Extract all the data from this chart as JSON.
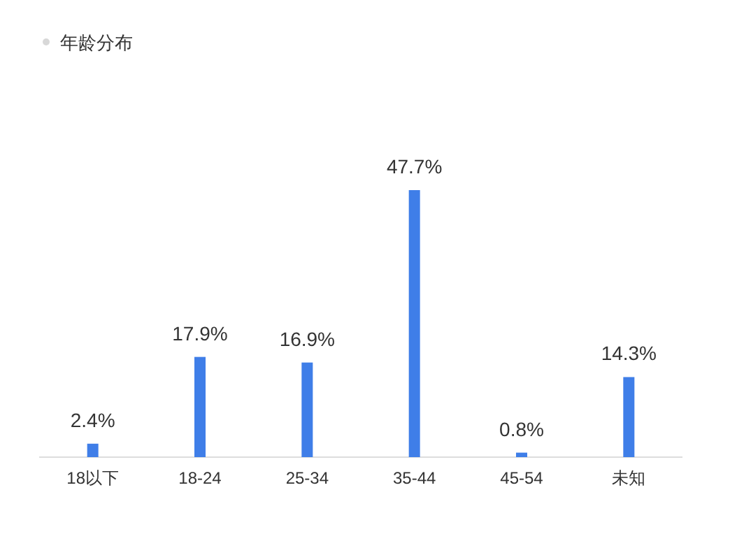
{
  "chart_data": {
    "type": "bar",
    "title": "年龄分布",
    "categories": [
      "18以下",
      "18-24",
      "25-34",
      "35-44",
      "45-54",
      "未知"
    ],
    "values": [
      2.4,
      17.9,
      16.9,
      47.7,
      0.8,
      14.3
    ],
    "value_labels": [
      "2.4%",
      "17.9%",
      "16.9%",
      "47.7%",
      "0.8%",
      "14.3%"
    ],
    "color": "#3f7ee8"
  }
}
